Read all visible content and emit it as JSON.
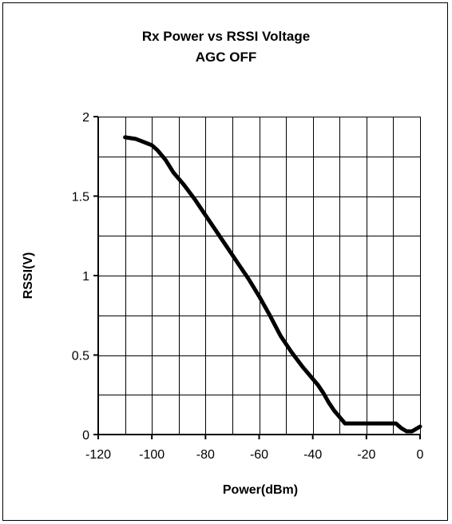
{
  "chart_data": {
    "type": "line",
    "title": "Rx Power vs RSSI Voltage",
    "subtitle": "AGC OFF",
    "xlabel": "Power(dBm)",
    "ylabel": "RSSI(V)",
    "xlim": [
      -120,
      0
    ],
    "ylim": [
      0,
      2
    ],
    "x_ticks": [
      -120,
      -100,
      -80,
      -60,
      -40,
      -20,
      0
    ],
    "y_ticks": [
      0,
      0.5,
      1,
      1.5,
      2
    ],
    "x_tick_labels": [
      "-120",
      "-100",
      "-80",
      "-60",
      "-40",
      "-20",
      "0"
    ],
    "y_tick_labels": [
      "0",
      "0.5",
      "1",
      "1.5",
      "2"
    ],
    "x_minor_step": 10,
    "y_minor_step": 0.25,
    "grid": true,
    "legend": "none",
    "line_color": "#000000",
    "series": [
      {
        "x": [
          -110,
          -106,
          -103,
          -100,
          -98,
          -95,
          -92,
          -88,
          -84,
          -80,
          -76,
          -72,
          -68,
          -64,
          -60,
          -56,
          -52,
          -48,
          -44,
          -40,
          -38,
          -36,
          -34,
          -32,
          -30,
          -28,
          -24,
          -20,
          -16,
          -12,
          -9,
          -7,
          -5,
          -3,
          0
        ],
        "y": [
          1.87,
          1.86,
          1.84,
          1.82,
          1.79,
          1.73,
          1.65,
          1.57,
          1.48,
          1.38,
          1.28,
          1.18,
          1.08,
          0.98,
          0.87,
          0.75,
          0.62,
          0.52,
          0.43,
          0.35,
          0.31,
          0.26,
          0.2,
          0.15,
          0.11,
          0.07,
          0.07,
          0.07,
          0.07,
          0.07,
          0.07,
          0.04,
          0.02,
          0.02,
          0.05
        ]
      }
    ]
  }
}
